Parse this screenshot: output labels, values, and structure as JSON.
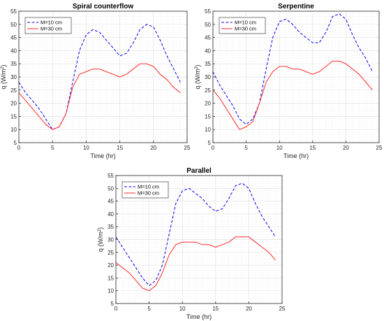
{
  "colors": {
    "m10": "#0000ff",
    "m30": "#ff2a2a",
    "grid": "#e3e3e3",
    "axis": "#262626"
  },
  "chart_data": [
    {
      "type": "line",
      "title": "Spiral counterflow",
      "xlabel": "Time (hr)",
      "ylabel_main": "q (W/m",
      "ylabel_sup": "2",
      "ylabel_end": ")",
      "xlim": [
        0,
        25
      ],
      "ylim": [
        5,
        55
      ],
      "xticks": [
        "0",
        "5",
        "10",
        "15",
        "20",
        "25"
      ],
      "yticks": [
        "5",
        "10",
        "15",
        "20",
        "25",
        "30",
        "35",
        "40",
        "45",
        "50",
        "55"
      ],
      "grid": true,
      "legend": "top-left",
      "series": [
        {
          "name": "M=10 cm",
          "style": "dashed",
          "x": [
            0,
            1,
            2,
            3,
            4,
            5,
            6,
            7,
            8,
            9,
            10,
            11,
            12,
            13,
            14,
            15,
            16,
            17,
            18,
            19,
            20,
            21,
            22,
            23,
            24
          ],
          "y": [
            28,
            24,
            21,
            18,
            14,
            10,
            11,
            16,
            28,
            40,
            46,
            48,
            47,
            44,
            41,
            38,
            39,
            43,
            48,
            50,
            49,
            44,
            38,
            33,
            28
          ]
        },
        {
          "name": "M=30 cm",
          "style": "solid",
          "x": [
            0,
            1,
            2,
            3,
            4,
            5,
            6,
            7,
            8,
            9,
            10,
            11,
            12,
            13,
            14,
            15,
            16,
            17,
            18,
            19,
            20,
            21,
            22,
            23,
            24
          ],
          "y": [
            24,
            21,
            18,
            15,
            12,
            10,
            11,
            16,
            26,
            31,
            32,
            33,
            33,
            32,
            31,
            30,
            31,
            33,
            35,
            35,
            34,
            31,
            29,
            26,
            24
          ]
        }
      ]
    },
    {
      "type": "line",
      "title": "Serpentine",
      "xlabel": "Time (hr)",
      "ylabel_main": "q (W/m",
      "ylabel_sup": "2",
      "ylabel_end": ")",
      "xlim": [
        0,
        25
      ],
      "ylim": [
        5,
        55
      ],
      "xticks": [
        "0",
        "5",
        "10",
        "15",
        "20",
        "25"
      ],
      "yticks": [
        "5",
        "10",
        "15",
        "20",
        "25",
        "30",
        "35",
        "40",
        "45",
        "50",
        "55"
      ],
      "grid": true,
      "legend": "top-left",
      "series": [
        {
          "name": "M=10 cm",
          "style": "dashed",
          "x": [
            0,
            1,
            2,
            3,
            4,
            5,
            6,
            7,
            8,
            9,
            10,
            11,
            12,
            13,
            14,
            15,
            16,
            17,
            18,
            19,
            20,
            21,
            22,
            23,
            24
          ],
          "y": [
            32,
            27,
            23,
            19,
            14,
            12,
            14,
            20,
            33,
            45,
            51,
            52,
            50,
            47,
            45,
            43,
            43,
            47,
            53,
            54,
            52,
            46,
            41,
            37,
            32
          ]
        },
        {
          "name": "M=30 cm",
          "style": "solid",
          "x": [
            0,
            1,
            2,
            3,
            4,
            5,
            6,
            7,
            8,
            9,
            10,
            11,
            12,
            13,
            14,
            15,
            16,
            17,
            18,
            19,
            20,
            21,
            22,
            23,
            24
          ],
          "y": [
            25,
            22,
            18,
            14,
            10,
            11,
            13,
            20,
            28,
            32,
            34,
            34,
            33,
            33,
            32,
            31,
            32,
            34,
            36,
            36,
            35,
            33,
            31,
            28,
            25
          ]
        }
      ]
    },
    {
      "type": "line",
      "title": "Parallel",
      "xlabel": "Time (hr)",
      "ylabel_main": "q (W/m",
      "ylabel_sup": "2",
      "ylabel_end": ")",
      "xlim": [
        0,
        25
      ],
      "ylim": [
        5,
        55
      ],
      "xticks": [
        "0",
        "5",
        "10",
        "15",
        "20",
        "25"
      ],
      "yticks": [
        "5",
        "10",
        "15",
        "20",
        "25",
        "30",
        "35",
        "40",
        "45",
        "50",
        "55"
      ],
      "grid": true,
      "legend": "top-left",
      "series": [
        {
          "name": "M=10 cm",
          "style": "dashed",
          "x": [
            0,
            1,
            2,
            3,
            4,
            5,
            6,
            7,
            8,
            9,
            10,
            11,
            12,
            13,
            14,
            15,
            16,
            17,
            18,
            19,
            20,
            21,
            22,
            23,
            24
          ],
          "y": [
            31,
            27,
            23,
            19,
            15,
            12,
            14,
            20,
            32,
            44,
            49,
            50,
            48,
            46,
            43,
            41,
            42,
            46,
            51,
            52,
            50,
            44,
            39,
            35,
            31
          ]
        },
        {
          "name": "M=30 cm",
          "style": "solid",
          "x": [
            0,
            1,
            2,
            3,
            4,
            5,
            6,
            7,
            8,
            9,
            10,
            11,
            12,
            13,
            14,
            15,
            16,
            17,
            18,
            19,
            20,
            21,
            22,
            23,
            24
          ],
          "y": [
            21,
            19,
            17,
            14,
            11,
            10,
            12,
            17,
            24,
            28,
            29,
            29,
            29,
            28,
            28,
            27,
            28,
            29,
            31,
            31,
            31,
            29,
            27,
            25,
            22
          ]
        }
      ]
    }
  ]
}
